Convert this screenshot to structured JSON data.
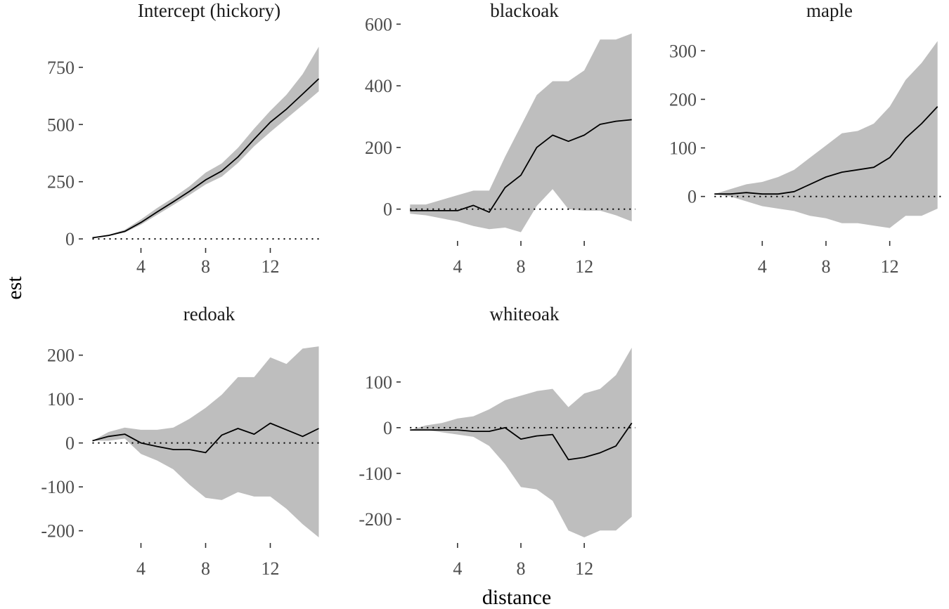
{
  "chart_data": {
    "type": "line",
    "xlabel": "distance",
    "ylabel": "est",
    "grid": false,
    "legend": "none",
    "colors": {
      "ribbon": "#bebebe",
      "line": "#000000",
      "reference": "#000000",
      "text": "#4d4d4d"
    },
    "x": [
      1,
      2,
      3,
      4,
      5,
      6,
      7,
      8,
      9,
      10,
      11,
      12,
      13,
      14,
      15
    ],
    "xticks": [
      4,
      8,
      12
    ],
    "reference_line": 0,
    "panels": [
      {
        "title": "Intercept (hickory)",
        "yticks": [
          0,
          250,
          500,
          750
        ],
        "xlim": [
          0.5,
          15.5
        ],
        "ylim": [
          -15,
          860
        ],
        "est": [
          5,
          15,
          33,
          72,
          118,
          162,
          208,
          258,
          297,
          358,
          436,
          510,
          567,
          633,
          700
        ],
        "lower": [
          5,
          13,
          28,
          62,
          105,
          148,
          192,
          238,
          272,
          332,
          405,
          467,
          526,
          585,
          645
        ],
        "upper": [
          5,
          18,
          40,
          85,
          135,
          180,
          230,
          290,
          330,
          398,
          482,
          560,
          630,
          720,
          840
        ],
        "upper_extra_last": 860
      },
      {
        "title": "blackoak",
        "yticks": [
          0,
          200,
          400,
          600
        ],
        "xlim": [
          0.5,
          15.5
        ],
        "ylim": [
          -85,
          610
        ],
        "est": [
          -5,
          -5,
          -5,
          -5,
          12,
          -10,
          70,
          110,
          200,
          240,
          220,
          240,
          275,
          285,
          290
        ],
        "lower": [
          -15,
          -20,
          -30,
          -40,
          -55,
          -65,
          -60,
          -75,
          10,
          65,
          0,
          -5,
          -5,
          -20,
          -40
        ],
        "upper": [
          15,
          15,
          30,
          45,
          60,
          60,
          170,
          270,
          370,
          415,
          415,
          450,
          550,
          550,
          570
        ]
      },
      {
        "title": "maple",
        "yticks": [
          0,
          100,
          200,
          300
        ],
        "xlim": [
          0.5,
          15.5
        ],
        "ylim": [
          -80,
          325
        ],
        "est": [
          5,
          5,
          8,
          5,
          5,
          10,
          25,
          40,
          50,
          55,
          60,
          80,
          120,
          150,
          185
        ],
        "lower": [
          5,
          0,
          -10,
          -20,
          -25,
          -30,
          -40,
          -45,
          -55,
          -55,
          -60,
          -65,
          -40,
          -40,
          -25
        ],
        "upper": [
          5,
          15,
          25,
          30,
          40,
          55,
          80,
          105,
          130,
          135,
          150,
          185,
          240,
          275,
          320
        ]
      },
      {
        "title": "redoak",
        "yticks": [
          -200,
          -100,
          0,
          100,
          200
        ],
        "xlim": [
          0.5,
          15.5
        ],
        "ylim": [
          -215,
          225
        ],
        "est": [
          5,
          15,
          20,
          0,
          -8,
          -15,
          -15,
          -22,
          18,
          33,
          20,
          45,
          30,
          15,
          33
        ],
        "lower": [
          5,
          5,
          10,
          -25,
          -40,
          -60,
          -95,
          -125,
          -130,
          -112,
          -122,
          -122,
          -150,
          -185,
          -215
        ],
        "upper": [
          5,
          25,
          35,
          30,
          30,
          35,
          55,
          80,
          110,
          150,
          150,
          195,
          180,
          215,
          220
        ]
      },
      {
        "title": "whiteoak",
        "yticks": [
          -200,
          -100,
          0,
          100
        ],
        "xlim": [
          0.5,
          15.5
        ],
        "ylim": [
          -240,
          175
        ],
        "est": [
          -5,
          -5,
          -5,
          -5,
          -8,
          -8,
          0,
          -25,
          -18,
          -15,
          -70,
          -65,
          -55,
          -40,
          10
        ],
        "lower": [
          -5,
          -5,
          -10,
          -15,
          -20,
          -40,
          -80,
          -130,
          -135,
          -160,
          -225,
          -240,
          -225,
          -225,
          -195
        ],
        "upper": [
          -5,
          5,
          10,
          20,
          25,
          40,
          60,
          70,
          80,
          85,
          45,
          75,
          85,
          115,
          175
        ]
      }
    ]
  }
}
